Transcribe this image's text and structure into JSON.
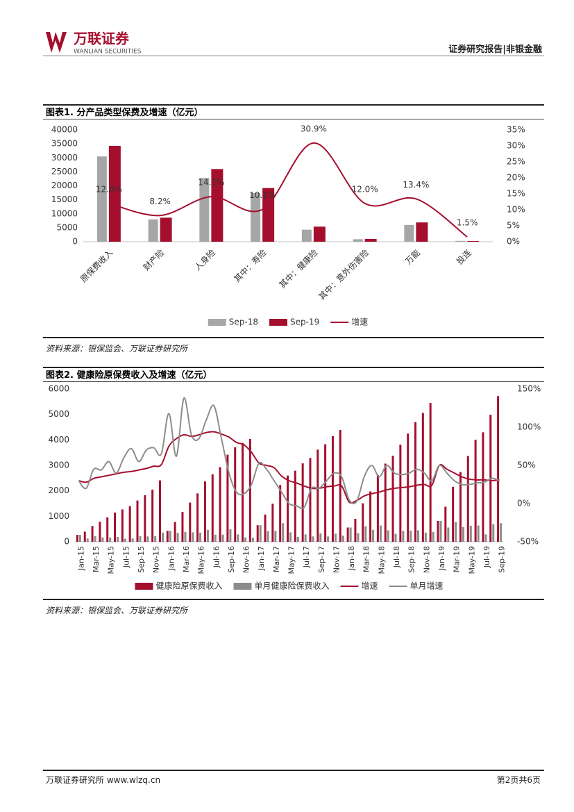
{
  "header": {
    "brand": "万联证券",
    "brand_en": "WANLIAN SECURITIES",
    "report": "证券研究报告",
    "sector": "非银金融"
  },
  "chart_data": [
    {
      "type": "bar",
      "title": "图表1. 分产品类型保费及增速（亿元）",
      "source": "资料来源：银保监会、万联证券研究所",
      "categories": [
        "原保费收入",
        "财产险",
        "人身险",
        "其中：寿险",
        "其中：健康险",
        "其中：意外伤害险",
        "万能",
        "投连"
      ],
      "series": [
        {
          "name": "Sep-18",
          "type": "bar",
          "color": "#a6a6a6",
          "values": [
            30500,
            8000,
            22800,
            17400,
            4300,
            900,
            6000,
            300
          ]
        },
        {
          "name": "Sep-19",
          "type": "bar",
          "color": "#a50f2d",
          "values": [
            34300,
            8600,
            26000,
            19200,
            5400,
            1000,
            6900,
            250
          ]
        },
        {
          "name": "增速",
          "type": "line",
          "axis": "y2",
          "color": "#a50f2d",
          "values": [
            12.0,
            8.2,
            14.1,
            10.1,
            30.9,
            12.0,
            13.4,
            1.5
          ],
          "value_labels": [
            "12.0%",
            "8.2%",
            "14.1%",
            "10.1%",
            "30.9%",
            "12.0%",
            "13.4%",
            "1.5%"
          ]
        }
      ],
      "ylim": [
        0,
        40000
      ],
      "yticks": [
        0,
        5000,
        10000,
        15000,
        20000,
        25000,
        30000,
        35000,
        40000
      ],
      "y2lim": [
        0,
        35
      ],
      "y2ticks": [
        {
          "value": 0,
          "label": "0%"
        },
        {
          "value": 5,
          "label": "5%"
        },
        {
          "value": 10,
          "label": "10%"
        },
        {
          "value": 15,
          "label": "15%"
        },
        {
          "value": 20,
          "label": "20%"
        },
        {
          "value": 25,
          "label": "25%"
        },
        {
          "value": 30,
          "label": "30%"
        },
        {
          "value": 35,
          "label": "35%"
        }
      ]
    },
    {
      "type": "bar",
      "title": "图表2. 健康险原保费收入及增速（亿元）",
      "source": "资料来源：银保监会、万联证券研究所",
      "categories": [
        "Jan-15",
        null,
        "Mar-15",
        null,
        "May-15",
        null,
        "Jul-15",
        null,
        "Sep-15",
        null,
        "Nov-15",
        null,
        "Jan-16",
        null,
        "Mar-16",
        null,
        "May-16",
        null,
        "Jul-16",
        null,
        "Sep-16",
        null,
        "Nov-16",
        null,
        "Jan-17",
        null,
        "Mar-17",
        null,
        "May-17",
        null,
        "Jul-17",
        null,
        "Sep-17",
        null,
        "Nov-17",
        null,
        "Jan-18",
        null,
        "Mar-18",
        null,
        "May-18",
        null,
        "Jul-18",
        null,
        "Sep-18",
        null,
        "Nov-18",
        null,
        "Jan-19",
        null,
        "Mar-19",
        null,
        "May-19",
        null,
        "Jul-19",
        null,
        "Sep-19"
      ],
      "series": [
        {
          "name": "健康险原保费收入",
          "type": "bar",
          "color": "#a50f2d",
          "values": [
            270,
            400,
            620,
            790,
            960,
            1150,
            1270,
            1400,
            1620,
            1830,
            2050,
            2410,
            430,
            780,
            1170,
            1540,
            1900,
            2370,
            2650,
            2930,
            3420,
            3710,
            3880,
            4040,
            650,
            1070,
            1500,
            2230,
            2600,
            2790,
            3080,
            3290,
            3620,
            3830,
            4150,
            4390,
            560,
            900,
            1510,
            1980,
            2620,
            3070,
            3380,
            3810,
            4250,
            4700,
            5060,
            5450,
            820,
            1380,
            2160,
            2740,
            3370,
            4010,
            4300,
            4990,
            5720
          ]
        },
        {
          "name": "单月健康险保费收入",
          "type": "bar",
          "color": "#8c8c8c",
          "values": [
            270,
            130,
            220,
            170,
            170,
            190,
            120,
            130,
            220,
            210,
            220,
            360,
            430,
            350,
            390,
            370,
            360,
            470,
            280,
            280,
            490,
            290,
            170,
            160,
            650,
            420,
            430,
            730,
            370,
            190,
            290,
            210,
            330,
            210,
            320,
            240,
            560,
            340,
            610,
            470,
            640,
            450,
            310,
            430,
            440,
            450,
            360,
            390,
            820,
            560,
            780,
            580,
            630,
            640,
            290,
            690,
            730
          ]
        },
        {
          "name": "增速",
          "type": "line",
          "axis": "y2",
          "color": "#a50f2d",
          "values": [
            30,
            28,
            33,
            35,
            37,
            39,
            41,
            42,
            44,
            46,
            49,
            51,
            75,
            85,
            90,
            88,
            90,
            93,
            94,
            91,
            87,
            80,
            77,
            67,
            53,
            50,
            47,
            36,
            30,
            27,
            23,
            20,
            20,
            22,
            23,
            23,
            2,
            4,
            10,
            13,
            15,
            18,
            20,
            21,
            22,
            24,
            25,
            24,
            50,
            45,
            40,
            35,
            32,
            31,
            31,
            30,
            31
          ]
        },
        {
          "name": "单月增速",
          "type": "line",
          "axis": "y2",
          "color": "#8c8c8c",
          "values": [
            30,
            20,
            45,
            44,
            55,
            40,
            60,
            72,
            55,
            70,
            73,
            65,
            118,
            62,
            138,
            90,
            85,
            110,
            128,
            85,
            40,
            15,
            13,
            25,
            53,
            45,
            30,
            15,
            0,
            -3,
            -5,
            20,
            20,
            30,
            40,
            35,
            5,
            3,
            35,
            50,
            35,
            50,
            40,
            38,
            40,
            45,
            40,
            30,
            50,
            40,
            30,
            25,
            25,
            27,
            28,
            33,
            30
          ]
        }
      ],
      "ylim": [
        0,
        6000
      ],
      "yticks": [
        0,
        1000,
        2000,
        3000,
        4000,
        5000,
        6000
      ],
      "y2lim": [
        -50,
        150
      ],
      "y2ticks": [
        {
          "value": -50,
          "label": "-50%"
        },
        {
          "value": 0,
          "label": "0%"
        },
        {
          "value": 50,
          "label": "50%"
        },
        {
          "value": 100,
          "label": "100%"
        },
        {
          "value": 150,
          "label": "150%"
        }
      ]
    }
  ],
  "footer": {
    "org": "万联证券研究所 www.wlzq.cn",
    "page": "第2页共6页"
  }
}
